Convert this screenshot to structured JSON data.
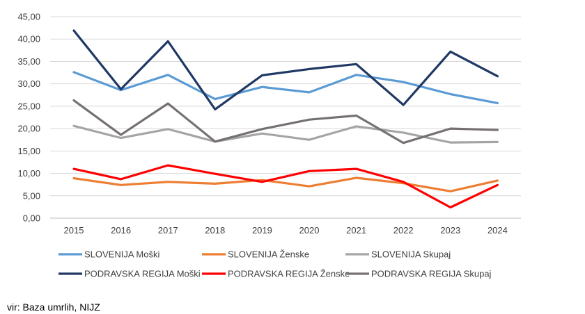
{
  "chart_data": {
    "type": "line",
    "x": [
      "2015",
      "2016",
      "2017",
      "2018",
      "2019",
      "2020",
      "2021",
      "2022",
      "2023",
      "2024"
    ],
    "ylim": [
      0,
      45
    ],
    "yticks": [
      "0,00",
      "5,00",
      "10,00",
      "15,00",
      "20,00",
      "25,00",
      "30,00",
      "35,00",
      "40,00",
      "45,00"
    ],
    "grid": true,
    "legend_position": "bottom",
    "series": [
      {
        "name": "SLOVENIJA Moški",
        "color": "#5B9BD5",
        "values": [
          32.6,
          28.6,
          32.0,
          26.6,
          29.3,
          28.1,
          32.0,
          30.4,
          27.7,
          25.7
        ]
      },
      {
        "name": "SLOVENIJA Ženske",
        "color": "#ED7D31",
        "values": [
          8.9,
          7.4,
          8.1,
          7.7,
          8.5,
          7.1,
          9.0,
          7.8,
          6.0,
          8.4
        ]
      },
      {
        "name": "SLOVENIJA Skupaj",
        "color": "#A5A5A5",
        "values": [
          20.6,
          17.9,
          19.9,
          17.1,
          18.9,
          17.5,
          20.5,
          19.1,
          16.9,
          17.0
        ]
      },
      {
        "name": "PODRAVSKA REGIJA Moški",
        "color": "#203864",
        "values": [
          41.9,
          28.8,
          39.5,
          24.3,
          31.9,
          33.3,
          34.4,
          25.3,
          37.2,
          31.7
        ]
      },
      {
        "name": "PODRAVSKA REGIJA Ženske",
        "color": "#FF0000",
        "values": [
          11.0,
          8.7,
          11.8,
          9.9,
          8.1,
          10.5,
          11.0,
          8.1,
          2.4,
          7.4
        ]
      },
      {
        "name": "PODRAVSKA REGIJA Skupaj",
        "color": "#767171",
        "values": [
          26.3,
          18.6,
          25.6,
          17.1,
          19.9,
          22.0,
          22.9,
          16.8,
          20.0,
          19.7
        ]
      }
    ]
  },
  "source_text": "vir: Baza umrlih, NIJZ"
}
